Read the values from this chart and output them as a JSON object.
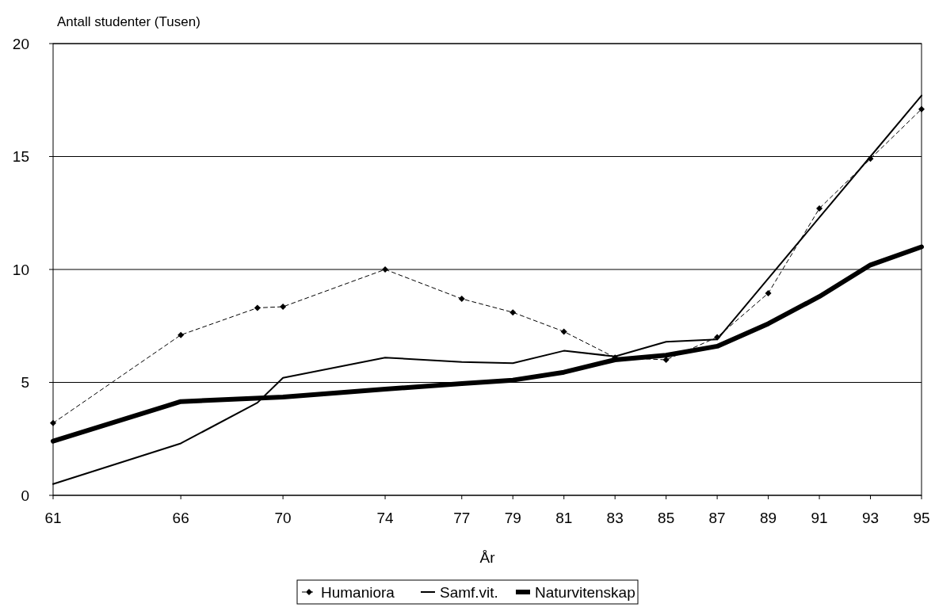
{
  "chart_data": {
    "type": "line",
    "ylabel": "Antall studenter (Tusen)",
    "xlabel": "År",
    "xlim": [
      61,
      95
    ],
    "xticks": [
      61,
      66,
      70,
      74,
      77,
      79,
      81,
      83,
      85,
      87,
      89,
      91,
      93,
      95
    ],
    "ylim": [
      0,
      20
    ],
    "yticks": [
      0,
      5,
      10,
      15,
      20
    ],
    "grid": "y",
    "legend": "bottom",
    "series": [
      {
        "name": "Humaniora",
        "color": "#000000",
        "line_style": "dashed",
        "marker": "diamond",
        "x": [
          61,
          66,
          69,
          70,
          74,
          77,
          79,
          81,
          83,
          85,
          87,
          89,
          91,
          93,
          95
        ],
        "values": [
          3.2,
          7.1,
          8.3,
          8.35,
          10,
          8.7,
          8.1,
          7.25,
          6.1,
          6,
          7,
          8.95,
          12.7,
          14.9,
          17.1
        ]
      },
      {
        "name": "Samf.vit.",
        "color": "#000000",
        "line_style": "solid",
        "marker": "none",
        "x": [
          61,
          66,
          69,
          70,
          74,
          77,
          79,
          81,
          83,
          85,
          87,
          89,
          91,
          93,
          95
        ],
        "values": [
          0.5,
          2.3,
          4.1,
          5.2,
          6.1,
          5.9,
          5.85,
          6.4,
          6.15,
          6.8,
          6.9,
          9.6,
          12.3,
          15,
          17.7
        ]
      },
      {
        "name": "Naturvitenskap",
        "color": "#000000",
        "line_style": "solid",
        "marker": "none",
        "x": [
          61,
          66,
          70,
          74,
          77,
          79,
          81,
          83,
          85,
          87,
          89,
          91,
          93,
          95
        ],
        "values": [
          2.4,
          4.15,
          4.35,
          4.7,
          4.95,
          5.1,
          5.45,
          6,
          6.2,
          6.6,
          7.6,
          8.8,
          10.2,
          11
        ]
      }
    ]
  }
}
